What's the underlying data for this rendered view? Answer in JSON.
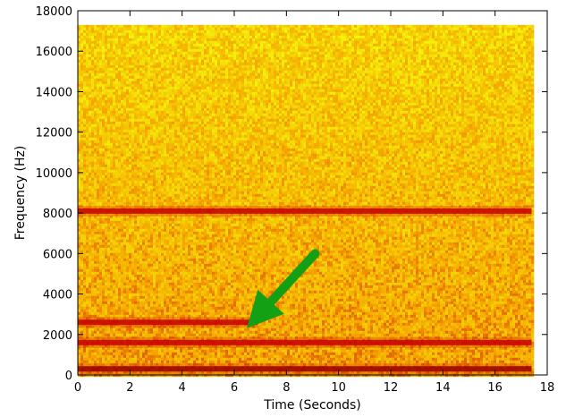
{
  "chart_data": {
    "type": "heatmap",
    "subtype": "spectrogram",
    "title": "",
    "xlabel": "Time (Seconds)",
    "ylabel": "Frequency (Hz)",
    "xlim": [
      0,
      18
    ],
    "ylim": [
      0,
      18000
    ],
    "x_ticks": [
      0,
      2,
      4,
      6,
      8,
      10,
      12,
      14,
      16,
      18
    ],
    "y_ticks": [
      0,
      2000,
      4000,
      6000,
      8000,
      10000,
      12000,
      14000,
      16000,
      18000
    ],
    "data_extent": {
      "time_max": 17.4,
      "freq_max": 17300
    },
    "colormap": "yellow-orange-red",
    "colors": {
      "low": "#f4f70a",
      "mid": "#f5a300",
      "high": "#c80000",
      "max": "#8b0000",
      "arrow": "#14a014"
    },
    "bands": [
      {
        "freq": 300,
        "t_start": 0,
        "t_end": 17.4,
        "intensity": "max"
      },
      {
        "freq": 1600,
        "t_start": 0,
        "t_end": 17.4,
        "intensity": "high"
      },
      {
        "freq": 2600,
        "t_start": 0,
        "t_end": 6.9,
        "intensity": "high"
      },
      {
        "freq": 8100,
        "t_start": 0,
        "t_end": 17.4,
        "intensity": "high"
      }
    ],
    "annotation": {
      "type": "arrow",
      "from": [
        9.1,
        6000
      ],
      "to": [
        6.9,
        2900
      ]
    },
    "grid": false
  }
}
